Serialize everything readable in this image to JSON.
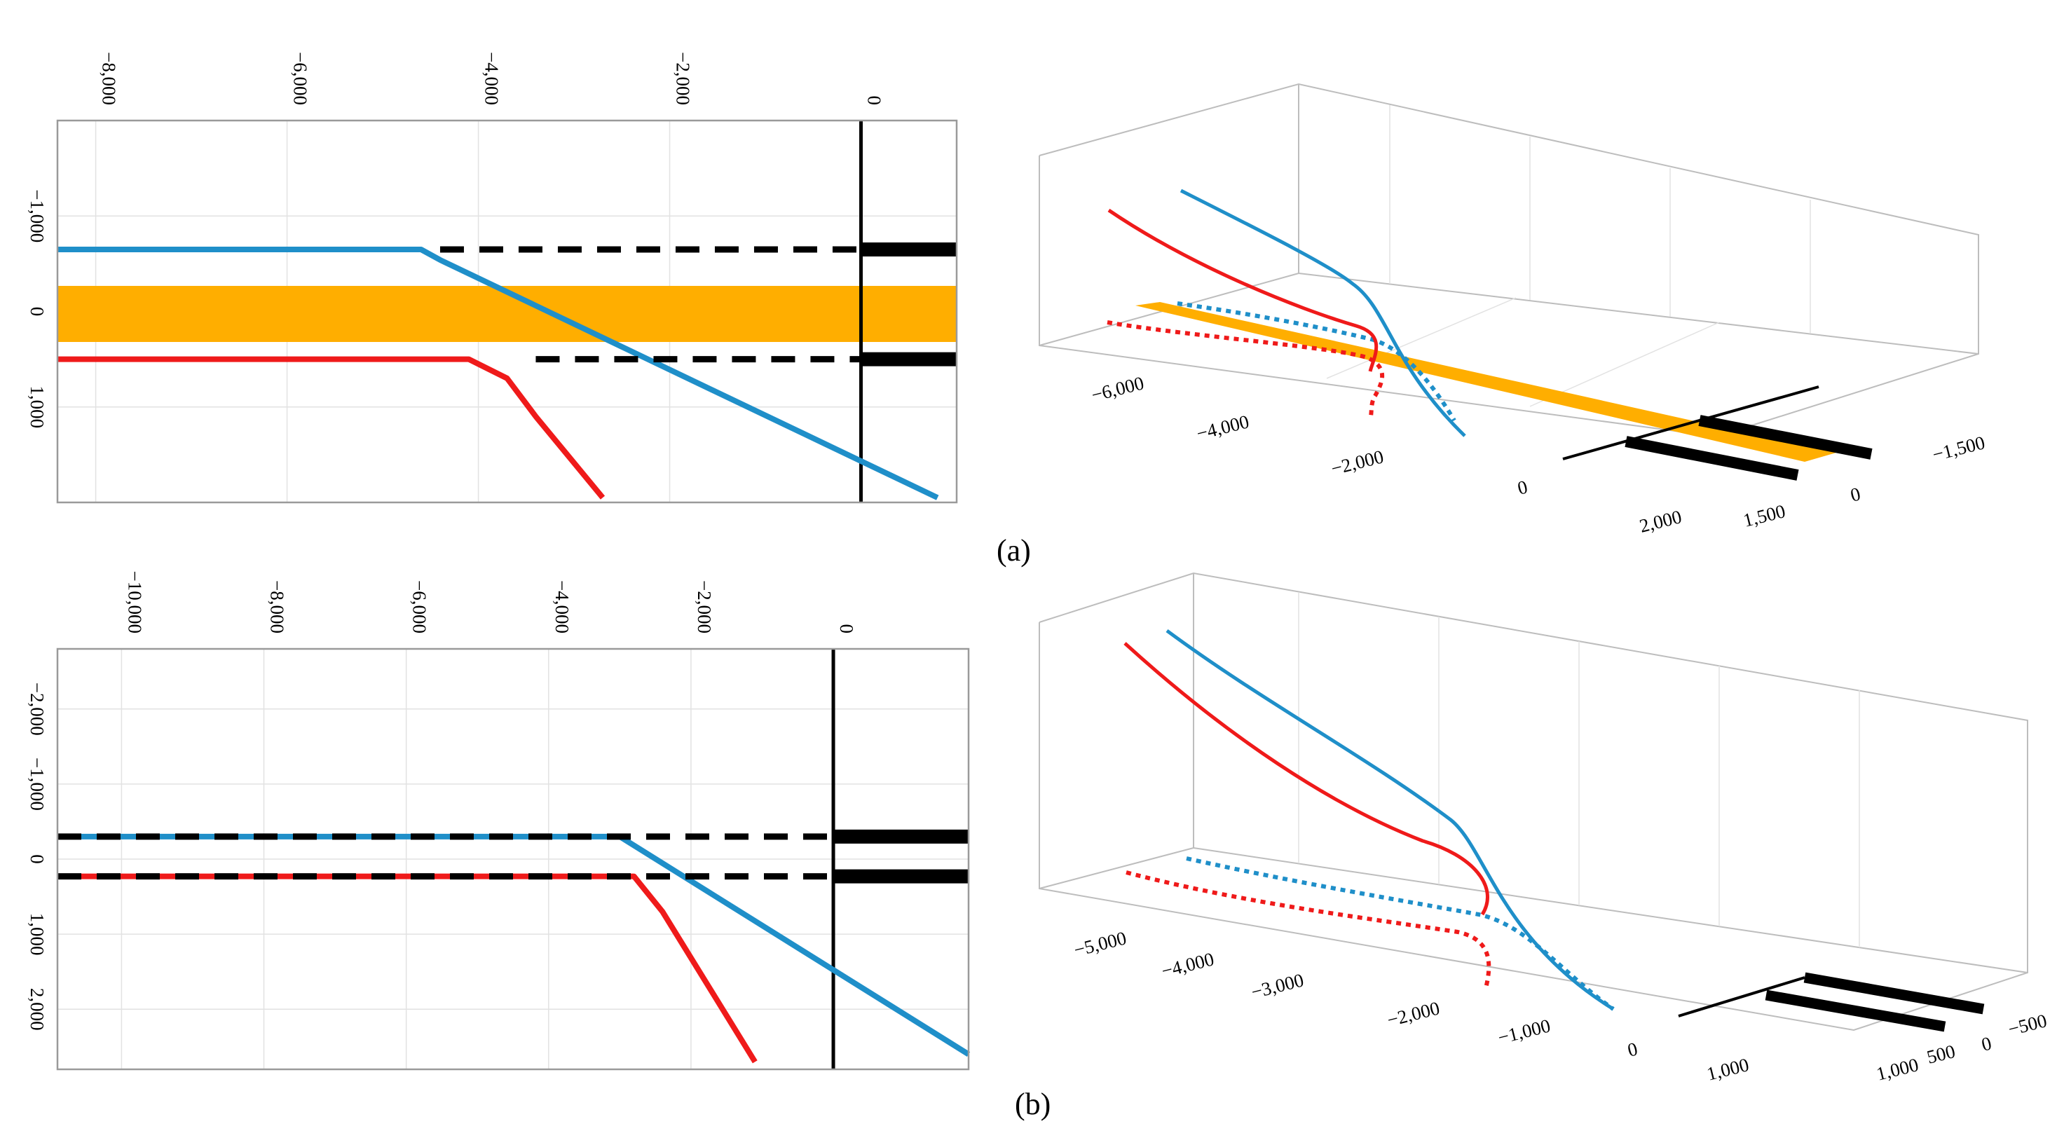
{
  "colors": {
    "blue": "#1f8fc9",
    "red": "#ef1a1a",
    "orange": "#ffae00",
    "black": "#000000"
  },
  "panels": [
    {
      "label": "(a)"
    },
    {
      "label": "(b)"
    }
  ],
  "chart_data": [
    {
      "type": "line",
      "panel": "(a)",
      "view": "plan",
      "x_ticks": [
        "−8,000",
        "−6,000",
        "−4,000",
        "−2,000",
        "0"
      ],
      "x_tick_values": [
        -8000,
        -6000,
        -4000,
        -2000,
        0
      ],
      "y_ticks": [
        "−1,000",
        "0",
        "1,000"
      ],
      "y_tick_values": [
        -1000,
        0,
        1000
      ],
      "xlim": [
        -8400,
        1000
      ],
      "ylim": [
        -2000,
        2000
      ],
      "band": {
        "name": "runway strip",
        "y_range": [
          -300,
          300
        ]
      },
      "series": [
        {
          "name": "blue trajectory",
          "color": "blue",
          "x": [
            -8400,
            -4600,
            -4400,
            800
          ],
          "y": [
            -650,
            -650,
            -540,
            1950
          ]
        },
        {
          "name": "red trajectory",
          "color": "red",
          "x": [
            -8400,
            -4100,
            -3700,
            -3400,
            -2700
          ],
          "y": [
            500,
            500,
            700,
            1100,
            1950
          ]
        },
        {
          "name": "dashed upper",
          "style": "dashed",
          "x": [
            -4400,
            0
          ],
          "y": [
            -650,
            -650
          ]
        },
        {
          "name": "dashed lower",
          "style": "dashed",
          "x": [
            -3400,
            0
          ],
          "y": [
            500,
            500
          ]
        }
      ]
    },
    {
      "type": "line",
      "panel": "(a)",
      "view": "3d",
      "x_ticks": [
        "−6,000",
        "−4,000",
        "−2,000",
        "0",
        "2,000"
      ],
      "y_ticks": [
        "−1,500",
        "0",
        "1,500"
      ],
      "series": [
        "blue trajectory",
        "red trajectory",
        "blue ground track",
        "red ground track"
      ]
    },
    {
      "type": "line",
      "panel": "(b)",
      "view": "plan",
      "x_ticks": [
        "−10,000",
        "−8,000",
        "−6,000",
        "−4,000",
        "−2,000",
        "0"
      ],
      "x_tick_values": [
        -10000,
        -8000,
        -6000,
        -4000,
        -2000,
        0
      ],
      "y_ticks": [
        "−2,000",
        "−1,000",
        "0",
        "1,000",
        "2,000"
      ],
      "y_tick_values": [
        -2000,
        -1000,
        0,
        1000,
        2000
      ],
      "xlim": [
        -10900,
        1900
      ],
      "ylim": [
        -2800,
        2800
      ],
      "series": [
        {
          "name": "blue trajectory",
          "color": "blue",
          "x": [
            -10900,
            -3000,
            1900
          ],
          "y": [
            -300,
            -300,
            2600
          ]
        },
        {
          "name": "red trajectory",
          "color": "red",
          "x": [
            -10900,
            -2800,
            -2400,
            -1100
          ],
          "y": [
            230,
            230,
            700,
            2700
          ]
        },
        {
          "name": "dashed upper",
          "style": "dashed",
          "x": [
            -10900,
            0
          ],
          "y": [
            -300,
            -300
          ]
        },
        {
          "name": "dashed lower",
          "style": "dashed",
          "x": [
            -10900,
            0
          ],
          "y": [
            230,
            230
          ]
        }
      ]
    },
    {
      "type": "line",
      "panel": "(b)",
      "view": "3d",
      "x_ticks": [
        "−5,000",
        "−4,000",
        "−3,000",
        "−2,000",
        "−1,000",
        "0",
        "1,000"
      ],
      "y_ticks": [
        "−500",
        "0",
        "500",
        "1,000"
      ],
      "series": [
        "blue trajectory",
        "red trajectory",
        "blue ground track",
        "red ground track"
      ]
    }
  ]
}
